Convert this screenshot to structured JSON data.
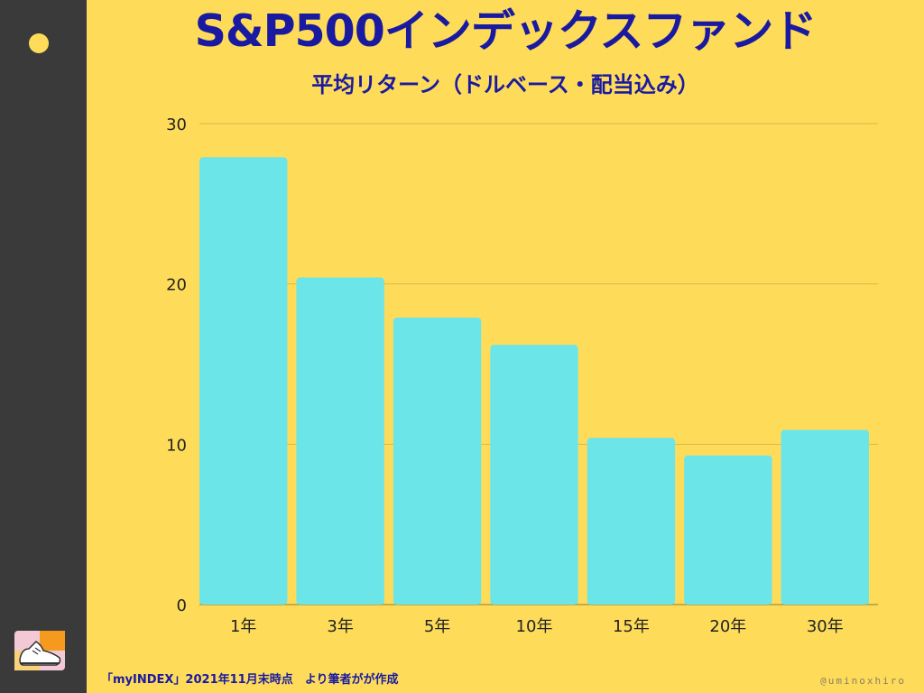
{
  "header": {
    "title": "S&P500インデックスファンド",
    "subtitle": "平均リターン（ドルベース・配当込み）"
  },
  "footer": {
    "source": "「myINDEX」2021年11月末時点　より筆者がが作成",
    "handle": "@uminoxhiro"
  },
  "colors": {
    "background": "#fedc5a",
    "sidebar": "#3a3a3a",
    "bar": "#6ce5e8",
    "title": "#1a1aa0",
    "gridline": "#d9b94a"
  },
  "icons": {
    "sidebar_dot": "yellow-dot-icon",
    "logo": "sneaker-logo-icon"
  },
  "chart_data": {
    "type": "bar",
    "title": "",
    "xlabel": "",
    "ylabel": "",
    "categories": [
      "1年",
      "3年",
      "5年",
      "10年",
      "15年",
      "20年",
      "30年"
    ],
    "values": [
      27.9,
      20.4,
      17.9,
      16.2,
      10.4,
      9.3,
      10.9
    ],
    "ylim": [
      0,
      30
    ],
    "yticks": [
      0,
      10,
      20,
      30
    ],
    "grid": true,
    "legend": "none"
  }
}
